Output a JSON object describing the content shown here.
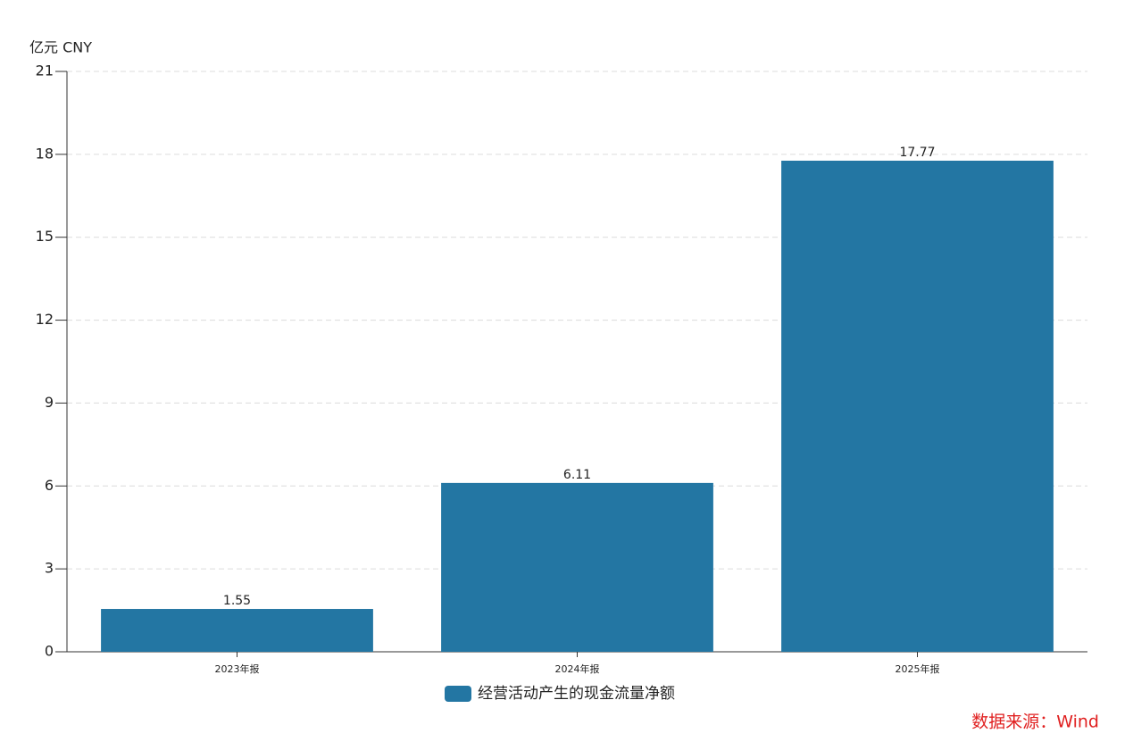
{
  "chart_data": {
    "type": "bar",
    "y_label": "亿元  CNY",
    "categories": [
      "2023年报",
      "2024年报",
      "2025年报"
    ],
    "series": [
      {
        "name": "经营活动产生的现金流量净额",
        "color": "#2376a3",
        "values": [
          1.55,
          6.11,
          17.77
        ]
      }
    ],
    "ylim": [
      0,
      21
    ],
    "yticks": [
      0,
      3,
      6,
      9,
      12,
      15,
      18,
      21
    ],
    "grid": true,
    "source": "数据来源：Wind"
  }
}
